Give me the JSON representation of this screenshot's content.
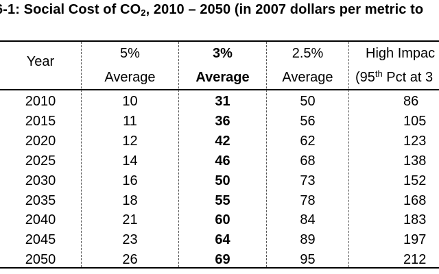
{
  "table": {
    "title_main": "6-1: Social Cost of CO",
    "title_sub": "2",
    "title_rest": ", 2010 – 2050 (in 2007 dollars per metric to",
    "headers": {
      "year": "Year",
      "c5_line1": "5%",
      "c5_line2": "Average",
      "c3_line1": "3%",
      "c3_line2": "Average",
      "c25_line1": "2.5%",
      "c25_line2": "Average",
      "high_line1": "High Impac",
      "high_line2_a": "(95",
      "high_line2_sup": "th",
      "high_line2_b": " Pct at 3"
    },
    "rows": [
      {
        "year": "2010",
        "c5": "10",
        "c3": "31",
        "c25": "50",
        "high": "86"
      },
      {
        "year": "2015",
        "c5": "11",
        "c3": "36",
        "c25": "56",
        "high": "105"
      },
      {
        "year": "2020",
        "c5": "12",
        "c3": "42",
        "c25": "62",
        "high": "123"
      },
      {
        "year": "2025",
        "c5": "14",
        "c3": "46",
        "c25": "68",
        "high": "138"
      },
      {
        "year": "2030",
        "c5": "16",
        "c3": "50",
        "c25": "73",
        "high": "152"
      },
      {
        "year": "2035",
        "c5": "18",
        "c3": "55",
        "c25": "78",
        "high": "168"
      },
      {
        "year": "2040",
        "c5": "21",
        "c3": "60",
        "c25": "84",
        "high": "183"
      },
      {
        "year": "2045",
        "c5": "23",
        "c3": "64",
        "c25": "89",
        "high": "197"
      },
      {
        "year": "2050",
        "c5": "26",
        "c3": "69",
        "c25": "95",
        "high": "212"
      }
    ]
  }
}
